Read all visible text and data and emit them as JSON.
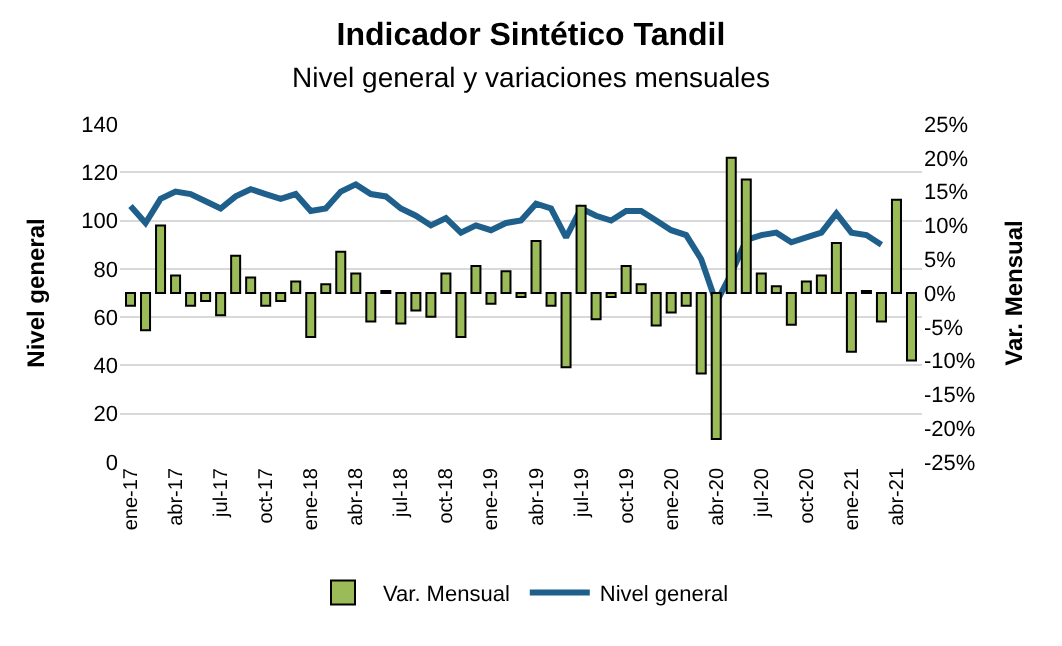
{
  "chart_data": {
    "type": "bar",
    "title": "Indicador Sintético Tandil",
    "subtitle": "Nivel general y variaciones mensuales",
    "ylabel": "Nivel general",
    "y2label": "Var. Mensual",
    "categories": [
      "ene-17",
      null,
      null,
      "abr-17",
      null,
      null,
      "jul-17",
      null,
      null,
      "oct-17",
      null,
      null,
      "ene-18",
      null,
      null,
      "abr-18",
      null,
      null,
      "jul-18",
      null,
      null,
      "oct-18",
      null,
      null,
      "ene-19",
      null,
      null,
      "abr-19",
      null,
      null,
      "jul-19",
      null,
      null,
      "oct-19",
      null,
      null,
      "ene-20",
      null,
      null,
      "abr-20",
      null,
      null,
      "jul-20",
      null,
      null,
      "oct-20",
      null,
      null,
      "ene-21",
      null,
      null,
      "abr-21",
      null
    ],
    "series": [
      {
        "name": "Var. Mensual",
        "axis": "y2",
        "color": "#9bbb59",
        "values": [
          -1.9,
          -5.5,
          10,
          2.6,
          -1.9,
          -1.2,
          -3.3,
          5.5,
          2.3,
          -1.9,
          -1.2,
          1.7,
          -6.5,
          1.3,
          6.1,
          2.9,
          -4.2,
          0.3,
          -4.5,
          -2.6,
          -3.5,
          2.9,
          -6.5,
          4.0,
          -1.6,
          3.2,
          -0.6,
          7.7,
          -1.9,
          -11,
          12.9,
          -3.9,
          -0.6,
          4.0,
          1.3,
          -4.8,
          -2.9,
          -1.9,
          -11.9,
          -21.6,
          20,
          16.8,
          2.9,
          1.0,
          -4.7,
          1.7,
          2.6,
          7.4,
          -8.7,
          0.3,
          -4.2,
          13.8,
          -10
        ]
      },
      {
        "name": "Nivel general",
        "type": "line",
        "axis": "y",
        "color": "#1f5f8b",
        "values": [
          106,
          99,
          109,
          112,
          111,
          108,
          105,
          110,
          113,
          111,
          109,
          111,
          104,
          105,
          112,
          115,
          111,
          110,
          105,
          102,
          98,
          101,
          95,
          98,
          96,
          99,
          100,
          107,
          105,
          93,
          105,
          102,
          100,
          104,
          104,
          100,
          96,
          94,
          84,
          66,
          78,
          92,
          94,
          95,
          91,
          93,
          95,
          103,
          95,
          94,
          90,
          null,
          null
        ]
      }
    ],
    "ylim": [
      0,
      140
    ],
    "yticks": [
      0,
      20,
      40,
      60,
      80,
      100,
      120,
      140
    ],
    "y2lim": [
      -25,
      25
    ],
    "y2ticks": [
      {
        "value": -25,
        "label": "-25%"
      },
      {
        "value": -20,
        "label": "-20%"
      },
      {
        "value": -15,
        "label": "-15%"
      },
      {
        "value": -10,
        "label": "-10%"
      },
      {
        "value": -5,
        "label": "-5%"
      },
      {
        "value": 0,
        "label": "0%"
      },
      {
        "value": 5,
        "label": "5%"
      },
      {
        "value": 10,
        "label": "10%"
      },
      {
        "value": 15,
        "label": "15%"
      },
      {
        "value": 20,
        "label": "20%"
      },
      {
        "value": 25,
        "label": "25%"
      }
    ],
    "grid": "y",
    "legend": "bottom",
    "marker": "none",
    "line_style": "solid"
  }
}
